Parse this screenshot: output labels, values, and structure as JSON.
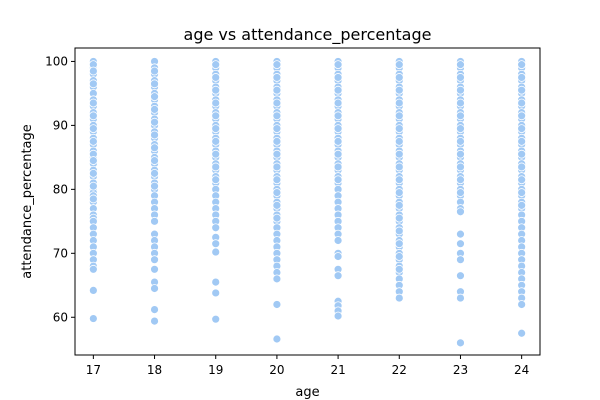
{
  "chart_data": {
    "type": "scatter",
    "title": "age vs attendance_percentage",
    "xlabel": "age",
    "ylabel": "attendance_percentage",
    "xlim": [
      16.7,
      24.3
    ],
    "ylim": [
      54.1,
      102.1
    ],
    "x_ticks": [
      17,
      18,
      19,
      20,
      21,
      22,
      23,
      24
    ],
    "y_ticks": [
      60,
      70,
      80,
      90,
      100
    ],
    "grid": false,
    "legend": "none",
    "marker_color": "#a1c9f4",
    "marker_edge_color": "#ffffff",
    "series": [
      {
        "x": [
          17,
          17,
          17,
          17,
          17,
          17,
          17,
          17,
          17,
          17,
          17,
          17,
          17,
          17,
          17,
          17,
          17,
          17,
          17,
          17,
          17,
          17,
          17,
          17,
          17,
          17,
          17,
          17,
          17,
          17,
          17,
          17,
          17,
          17,
          17,
          17,
          17,
          17,
          17,
          17,
          17,
          17,
          17,
          17,
          17,
          17,
          17,
          17,
          17,
          17
        ],
        "y": [
          100,
          99,
          98,
          97,
          96,
          95,
          94,
          93,
          92,
          91,
          90,
          89,
          88,
          87,
          86,
          85,
          84,
          83,
          82,
          81,
          80,
          79.5,
          79,
          78,
          77,
          76,
          75.5,
          75,
          74,
          73,
          72,
          71,
          70,
          69,
          68,
          67.5,
          64.2,
          59.8,
          99.5,
          98.5,
          96.5,
          93.5,
          91.5,
          89.5,
          87.5,
          85.5,
          84.5,
          82.5,
          80.5,
          78.5
        ]
      },
      {
        "x": [
          18,
          18,
          18,
          18,
          18,
          18,
          18,
          18,
          18,
          18,
          18,
          18,
          18,
          18,
          18,
          18,
          18,
          18,
          18,
          18,
          18,
          18,
          18,
          18,
          18,
          18,
          18,
          18,
          18,
          18,
          18,
          18,
          18,
          18,
          18,
          18,
          18,
          18,
          18,
          18,
          18,
          18,
          18,
          18,
          18,
          18
        ],
        "y": [
          100,
          99,
          98,
          97,
          96,
          95,
          94,
          93,
          92,
          91,
          90,
          89,
          88,
          87,
          86,
          85,
          84,
          83,
          82,
          81,
          80,
          79,
          78,
          77,
          76,
          75,
          73,
          72,
          71,
          70,
          69,
          67.5,
          65.5,
          64.5,
          61.2,
          59.4,
          98.5,
          96.5,
          94.5,
          92.5,
          90.5,
          88.5,
          86.5,
          84.5,
          82.5,
          80.5
        ]
      },
      {
        "x": [
          19,
          19,
          19,
          19,
          19,
          19,
          19,
          19,
          19,
          19,
          19,
          19,
          19,
          19,
          19,
          19,
          19,
          19,
          19,
          19,
          19,
          19,
          19,
          19,
          19,
          19,
          19,
          19,
          19,
          19,
          19,
          19,
          19,
          19,
          19,
          19,
          19,
          19,
          19,
          19,
          19,
          19,
          19
        ],
        "y": [
          100,
          99,
          98,
          97,
          96,
          95,
          94,
          93,
          92,
          91,
          90,
          89,
          88,
          87,
          86,
          85,
          84,
          83,
          82,
          81,
          80,
          79,
          78,
          77,
          76,
          75,
          74,
          72.5,
          71.5,
          70.2,
          65.5,
          63.8,
          59.7,
          99.5,
          97.5,
          95.5,
          93.5,
          91.5,
          89.5,
          87.5,
          85.5,
          83.5,
          81.5
        ]
      },
      {
        "x": [
          20,
          20,
          20,
          20,
          20,
          20,
          20,
          20,
          20,
          20,
          20,
          20,
          20,
          20,
          20,
          20,
          20,
          20,
          20,
          20,
          20,
          20,
          20,
          20,
          20,
          20,
          20,
          20,
          20,
          20,
          20,
          20,
          20,
          20,
          20,
          20,
          20,
          20,
          20,
          20,
          20,
          20,
          20,
          20,
          20,
          20,
          20,
          20,
          20,
          20
        ],
        "y": [
          100,
          99,
          98,
          97,
          96,
          95,
          94,
          93,
          92,
          91,
          90,
          89,
          88,
          87,
          86,
          85,
          84,
          83,
          82,
          81,
          80,
          79,
          78,
          77,
          76,
          75,
          74,
          73,
          72,
          71,
          70,
          69,
          68,
          67,
          66,
          62,
          56.6,
          99.5,
          97.5,
          95.5,
          93.5,
          91.5,
          89.5,
          87.5,
          85.5,
          83.5,
          81.5,
          79.5,
          77.5,
          75.5
        ]
      },
      {
        "x": [
          21,
          21,
          21,
          21,
          21,
          21,
          21,
          21,
          21,
          21,
          21,
          21,
          21,
          21,
          21,
          21,
          21,
          21,
          21,
          21,
          21,
          21,
          21,
          21,
          21,
          21,
          21,
          21,
          21,
          21,
          21,
          21,
          21,
          21,
          21,
          21,
          21,
          21,
          21,
          21,
          21,
          21,
          21,
          21,
          21,
          21,
          21
        ],
        "y": [
          100,
          99,
          98,
          97,
          96,
          95,
          94,
          93,
          92,
          91,
          90,
          89,
          88,
          87,
          86,
          85,
          84,
          83,
          82,
          81,
          80,
          79,
          78,
          77,
          76,
          75,
          74,
          73,
          72,
          70,
          69.5,
          67.5,
          66.5,
          62.5,
          61.8,
          61,
          60.2,
          99.5,
          97.5,
          95.5,
          93.5,
          91.5,
          89.5,
          87.5,
          85.5,
          83.5,
          81.5
        ]
      },
      {
        "x": [
          22,
          22,
          22,
          22,
          22,
          22,
          22,
          22,
          22,
          22,
          22,
          22,
          22,
          22,
          22,
          22,
          22,
          22,
          22,
          22,
          22,
          22,
          22,
          22,
          22,
          22,
          22,
          22,
          22,
          22,
          22,
          22,
          22,
          22,
          22,
          22,
          22,
          22,
          22,
          22,
          22,
          22,
          22,
          22,
          22,
          22,
          22,
          22,
          22,
          22,
          22,
          22,
          22,
          22,
          22
        ],
        "y": [
          100,
          99,
          98,
          97,
          96,
          95,
          94,
          93,
          92,
          91,
          90,
          89,
          88,
          87,
          86,
          85,
          84,
          83,
          82,
          81,
          80,
          79,
          78,
          77,
          76,
          75,
          74,
          73,
          72,
          71,
          70,
          69,
          68,
          67,
          66,
          65,
          64,
          63,
          99.5,
          97.5,
          95.5,
          93.5,
          91.5,
          89.5,
          87.5,
          85.5,
          83.5,
          81.5,
          79.5,
          77.5,
          75.5,
          73.5,
          71.5,
          69.5,
          67.5
        ]
      },
      {
        "x": [
          23,
          23,
          23,
          23,
          23,
          23,
          23,
          23,
          23,
          23,
          23,
          23,
          23,
          23,
          23,
          23,
          23,
          23,
          23,
          23,
          23,
          23,
          23,
          23,
          23,
          23,
          23,
          23,
          23,
          23,
          23,
          23,
          23,
          23,
          23,
          23,
          23,
          23,
          23,
          23,
          23,
          23,
          23,
          23
        ],
        "y": [
          100,
          99,
          98,
          97,
          96,
          95,
          94,
          93,
          92,
          91,
          90,
          89,
          88,
          87,
          86,
          85,
          84,
          83,
          82,
          81,
          80,
          79,
          78,
          77,
          76.5,
          73,
          71.5,
          70,
          69,
          66.5,
          64,
          63,
          56,
          99.5,
          97.5,
          95.5,
          93.5,
          91.5,
          89.5,
          87.5,
          85.5,
          83.5,
          81.5,
          79.5
        ]
      },
      {
        "x": [
          24,
          24,
          24,
          24,
          24,
          24,
          24,
          24,
          24,
          24,
          24,
          24,
          24,
          24,
          24,
          24,
          24,
          24,
          24,
          24,
          24,
          24,
          24,
          24,
          24,
          24,
          24,
          24,
          24,
          24,
          24,
          24,
          24,
          24,
          24,
          24,
          24,
          24,
          24,
          24,
          24,
          24,
          24,
          24,
          24,
          24,
          24,
          24,
          24,
          24,
          24,
          24
        ],
        "y": [
          100,
          99,
          98,
          97,
          96,
          95,
          94,
          93,
          92,
          91,
          90,
          89,
          88,
          87,
          86,
          85,
          84,
          83,
          82,
          81,
          80,
          79,
          78,
          77,
          76,
          75,
          74,
          73,
          72,
          71,
          70,
          69,
          68,
          67,
          66,
          65,
          64,
          63,
          62,
          57.5,
          99.5,
          97.5,
          95.5,
          93.5,
          91.5,
          89.5,
          87.5,
          85.5,
          83.5,
          81.5,
          79.5,
          77.5
        ]
      }
    ]
  }
}
